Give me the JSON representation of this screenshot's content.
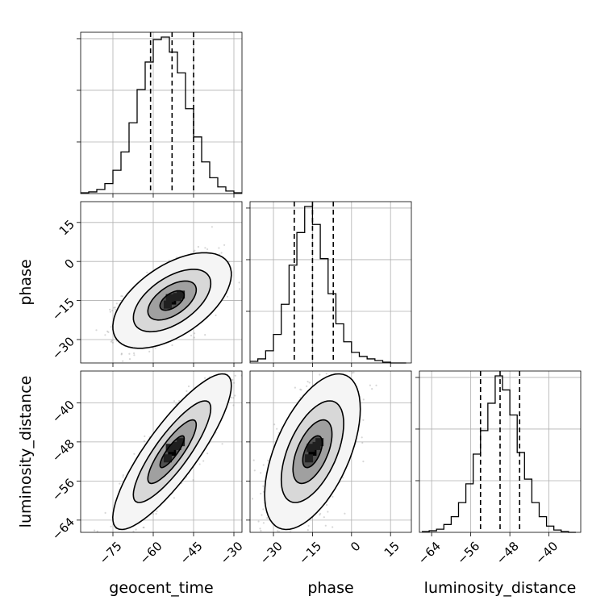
{
  "chart_data": {
    "type": "corner",
    "parameters": [
      "geocent_time",
      "phase",
      "luminosity_distance"
    ],
    "axis_labels": [
      "geocent_time",
      "phase",
      "luminosity_distance"
    ],
    "ranges": [
      [
        -87,
        -27
      ],
      [
        -39,
        23
      ],
      [
        -66.5,
        -33.5
      ]
    ],
    "ticks": [
      [
        -75,
        -60,
        -45,
        -30
      ],
      [
        -30,
        -15,
        0,
        15
      ],
      [
        -64,
        -56,
        -48,
        -40
      ]
    ],
    "tick_labels": [
      [
        "−75",
        "−60",
        "−45",
        "−30"
      ],
      [
        "−30",
        "−15",
        "0",
        "15"
      ],
      [
        "−64",
        "−56",
        "−48",
        "−40"
      ]
    ],
    "means": [
      -53,
      -15,
      -50
    ],
    "stds": [
      9,
      7.5,
      6.5
    ],
    "correlations": {
      "0_1": 0.55,
      "0_2": 0.85,
      "1_2": 0.55
    },
    "quantiles": [
      {
        "param": "geocent_time",
        "q16": -61,
        "q50": -53,
        "q84": -45
      },
      {
        "param": "phase",
        "q16": -22,
        "q50": -15,
        "q84": -7
      },
      {
        "param": "luminosity_distance",
        "q16": -54,
        "q50": -50,
        "q84": -46
      }
    ],
    "histograms": [
      {
        "param": "geocent_time",
        "bin_edges": [
          -87,
          -84,
          -81,
          -78,
          -75,
          -72,
          -69,
          -66,
          -63,
          -60,
          -57,
          -54,
          -51,
          -48,
          -45,
          -42,
          -39,
          -36,
          -33,
          -30,
          -27
        ],
        "counts": [
          1,
          2,
          5,
          12,
          28,
          50,
          85,
          125,
          158,
          185,
          188,
          170,
          145,
          102,
          68,
          38,
          19,
          8,
          3,
          1
        ]
      },
      {
        "param": "phase",
        "bin_edges": [
          -39,
          -36,
          -33,
          -30,
          -27,
          -24,
          -21,
          -18,
          -15,
          -12,
          -9,
          -6,
          -3,
          0,
          3,
          6,
          9,
          12,
          15,
          18,
          21
        ],
        "counts": [
          2,
          5,
          15,
          35,
          72,
          120,
          160,
          192,
          170,
          128,
          85,
          48,
          26,
          13,
          8,
          5,
          3,
          1,
          0,
          0
        ]
      },
      {
        "param": "luminosity_distance",
        "bin_edges": [
          -66,
          -64.5,
          -63,
          -61.5,
          -60,
          -58.5,
          -57,
          -55.5,
          -54,
          -52.5,
          -51,
          -49.5,
          -48,
          -46.5,
          -45,
          -43.5,
          -42,
          -40.5,
          -39,
          -37.5,
          -36,
          -34.5
        ],
        "counts": [
          1,
          2,
          4,
          10,
          20,
          38,
          62,
          100,
          130,
          165,
          200,
          182,
          150,
          102,
          68,
          38,
          20,
          8,
          3,
          1,
          0
        ]
      }
    ],
    "contour_levels": [
      0.118,
      0.393,
      0.675,
      0.864
    ],
    "grid": true
  }
}
